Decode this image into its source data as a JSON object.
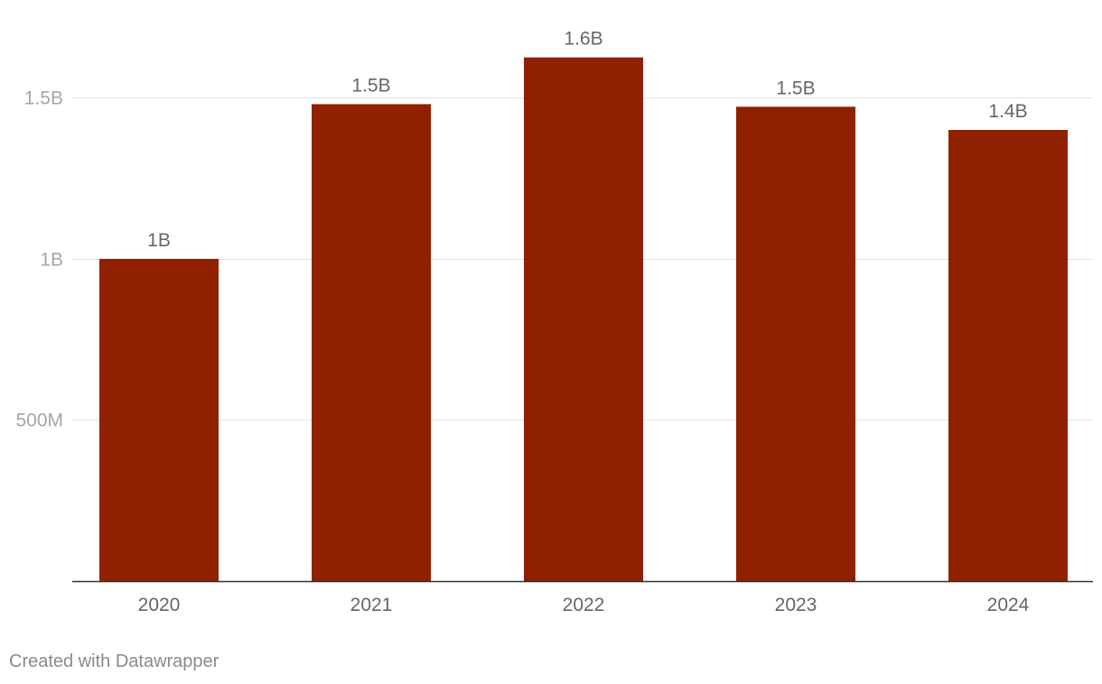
{
  "chart_data": {
    "type": "bar",
    "categories": [
      "2020",
      "2021",
      "2022",
      "2023",
      "2024"
    ],
    "values": [
      1000000000,
      1480000000,
      1625000000,
      1472000000,
      1400000000
    ],
    "value_labels": [
      "1B",
      "1.5B",
      "1.6B",
      "1.5B",
      "1.4B"
    ],
    "y_ticks": [
      {
        "value": 500000000,
        "label": "500M"
      },
      {
        "value": 1000000000,
        "label": "1B"
      },
      {
        "value": 1500000000,
        "label": "1.5B"
      }
    ],
    "ylim": [
      0,
      1750000000
    ],
    "grid": true,
    "title": "",
    "xlabel": "",
    "ylabel": ""
  },
  "colors": {
    "bar": "#8f2000",
    "grid": "#e1e1e1",
    "axis_line": "#333333",
    "tick_label": "#a6a6a6",
    "category_label": "#666666",
    "value_label": "#666666"
  },
  "footer": {
    "credit": "Created with Datawrapper"
  }
}
